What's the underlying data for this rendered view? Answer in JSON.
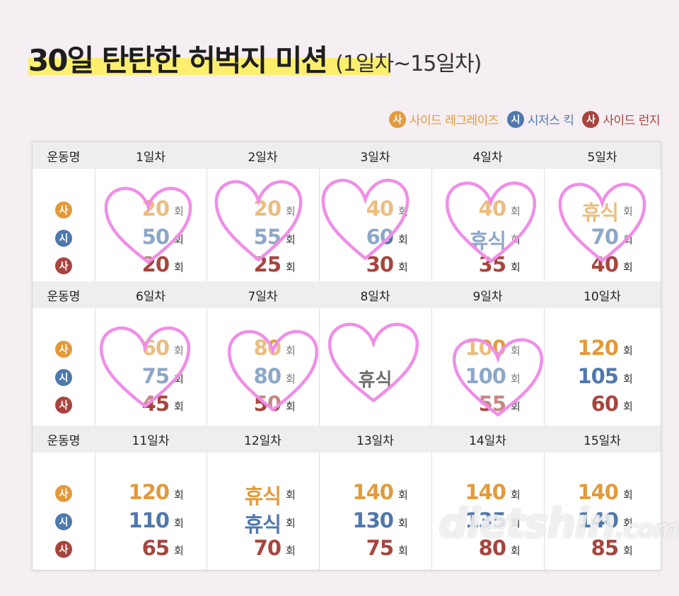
{
  "title": {
    "main": "30일 탄탄한 허벅지 미션",
    "sub": "(1일차~15일차)"
  },
  "colors": {
    "orange": "#e29a3b",
    "blue": "#4f78ad",
    "red": "#a7453e",
    "heart": "#ef8ee8"
  },
  "legend": [
    {
      "badge": "사",
      "label": "사이드 레그레이즈",
      "color": "orange"
    },
    {
      "badge": "시",
      "label": "시저스 킥",
      "color": "blue"
    },
    {
      "badge": "사",
      "label": "사이드 런지",
      "color": "red"
    }
  ],
  "header_label": "운동명",
  "unit": "회",
  "rest_label": "휴식",
  "row_badges": [
    "사",
    "시",
    "사"
  ],
  "rows": [
    {
      "days": [
        {
          "label": "1일차",
          "values": [
            "20",
            "50",
            "20"
          ]
        },
        {
          "label": "2일차",
          "values": [
            "20",
            "55",
            "25"
          ]
        },
        {
          "label": "3일차",
          "values": [
            "40",
            "60",
            "30"
          ]
        },
        {
          "label": "4일차",
          "values": [
            "40",
            "휴식",
            "35"
          ]
        },
        {
          "label": "5일차",
          "values": [
            "휴식",
            "70",
            "40"
          ]
        }
      ]
    },
    {
      "days": [
        {
          "label": "6일차",
          "values": [
            "60",
            "75",
            "45"
          ]
        },
        {
          "label": "7일차",
          "values": [
            "80",
            "80",
            "50"
          ]
        },
        {
          "label": "8일차",
          "rest": "휴식"
        },
        {
          "label": "9일차",
          "values": [
            "100",
            "100",
            "55"
          ]
        },
        {
          "label": "10일차",
          "values": [
            "120",
            "105",
            "60"
          ]
        }
      ]
    },
    {
      "days": [
        {
          "label": "11일차",
          "values": [
            "120",
            "110",
            "65"
          ]
        },
        {
          "label": "12일차",
          "values": [
            "휴식",
            "휴식",
            "70"
          ]
        },
        {
          "label": "13일차",
          "values": [
            "140",
            "130",
            "75"
          ]
        },
        {
          "label": "14일차",
          "values": [
            "140",
            "135",
            "80"
          ]
        },
        {
          "label": "15일차",
          "values": [
            "140",
            "140",
            "85"
          ]
        }
      ]
    }
  ],
  "watermark": {
    "main": "dietshin",
    "suffix": ".com"
  }
}
